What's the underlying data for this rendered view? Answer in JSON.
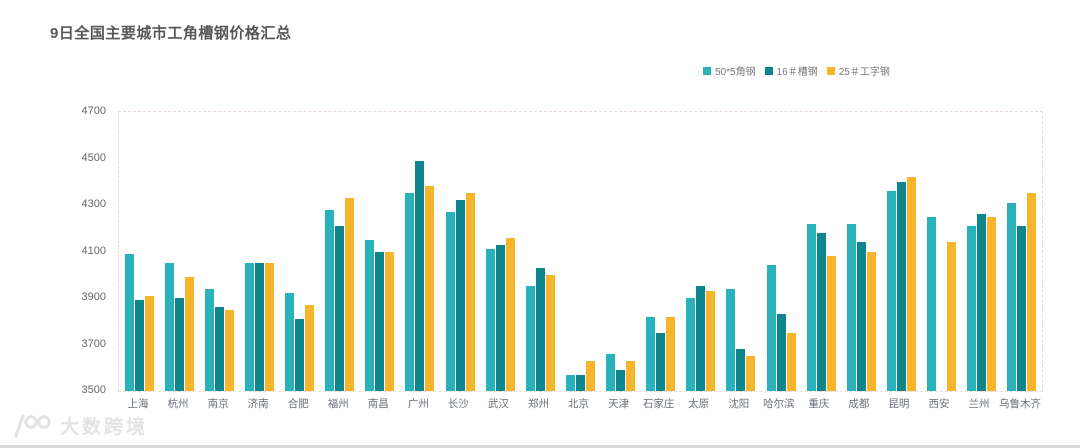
{
  "title": "9日全国主要城市工角槽钢价格汇总",
  "watermark": "大数跨境",
  "chart_data": {
    "type": "bar",
    "title": "9日全国主要城市工角槽钢价格汇总",
    "categories": [
      "上海",
      "杭州",
      "南京",
      "济南",
      "合肥",
      "福州",
      "南昌",
      "广州",
      "长沙",
      "武汉",
      "郑州",
      "北京",
      "天津",
      "石家庄",
      "太原",
      "沈阳",
      "哈尔滨",
      "重庆",
      "成都",
      "昆明",
      "西安",
      "兰州",
      "乌鲁木齐"
    ],
    "series": [
      {
        "name": "50*5角钢",
        "color": "#29b2ba",
        "values": [
          4090,
          4050,
          3940,
          4050,
          3920,
          4280,
          4150,
          4350,
          4270,
          4110,
          3950,
          3570,
          3660,
          3820,
          3900,
          3940,
          4040,
          4220,
          4220,
          4360,
          4250,
          4210,
          4310
        ]
      },
      {
        "name": "16＃槽钢",
        "color": "#0e868d",
        "values": [
          3890,
          3900,
          3860,
          4050,
          3810,
          4210,
          4100,
          4490,
          4320,
          4130,
          4030,
          3570,
          3590,
          3750,
          3950,
          3680,
          3830,
          4180,
          4140,
          4400,
          null,
          4260,
          4210
        ]
      },
      {
        "name": "25＃工字钢",
        "color": "#f7b52c",
        "values": [
          3910,
          3990,
          3850,
          4050,
          3870,
          4330,
          4100,
          4380,
          4350,
          4160,
          4000,
          3630,
          3630,
          3820,
          3930,
          3650,
          3750,
          4080,
          4100,
          4420,
          4140,
          4250,
          4350
        ]
      }
    ],
    "xlabel": "",
    "ylabel": "",
    "ylim": [
      3500,
      4700
    ],
    "yticks": [
      3500,
      3700,
      3900,
      4100,
      4300,
      4500,
      4700
    ],
    "grid": false,
    "legend_position": "top-right"
  }
}
